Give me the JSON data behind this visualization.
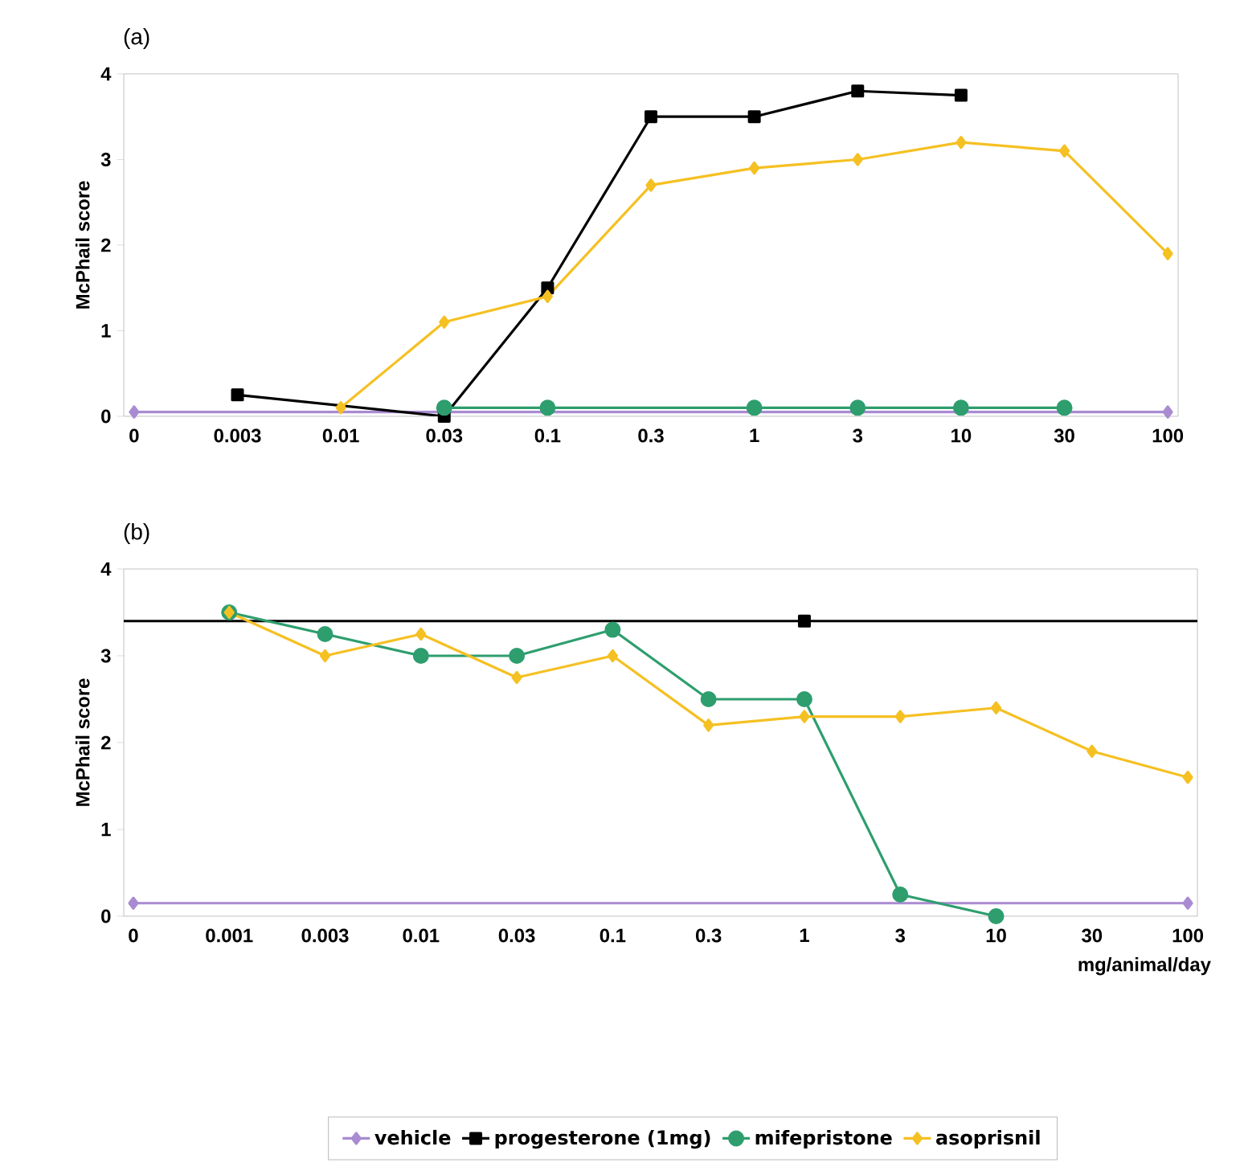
{
  "chart_data": [
    {
      "type": "line",
      "title": "(a)",
      "ylabel": "McPhail score",
      "categories": [
        "0",
        "0.003",
        "0.01",
        "0.03",
        "0.1",
        "0.3",
        "1",
        "3",
        "10",
        "30",
        "100"
      ],
      "ylim": [
        0,
        4
      ],
      "yticks": [
        0,
        1,
        2,
        3,
        4
      ],
      "grid": false,
      "series": [
        {
          "color": "#a98bd2",
          "marker": "diamond",
          "values": [
            0.05,
            null,
            null,
            null,
            null,
            null,
            null,
            null,
            null,
            null,
            0.05
          ]
        },
        {
          "color": "#000000",
          "marker": "square",
          "values": [
            null,
            0.25,
            null,
            0,
            1.5,
            3.5,
            3.5,
            3.8,
            3.75,
            null,
            null
          ]
        },
        {
          "color": "#2e9e6e",
          "marker": "circle",
          "values": [
            null,
            null,
            null,
            0.1,
            0.1,
            null,
            0.1,
            0.1,
            0.1,
            0.1,
            null
          ]
        },
        {
          "color": "#f5c022",
          "marker": "diamond",
          "values": [
            null,
            null,
            0.1,
            1.1,
            1.4,
            2.7,
            2.9,
            3.0,
            3.2,
            3.1,
            1.9
          ]
        }
      ]
    },
    {
      "type": "line",
      "title": "(b)",
      "ylabel": "McPhail score",
      "xlabel": "mg/animal/day",
      "categories": [
        "0",
        "0.001",
        "0.003",
        "0.01",
        "0.03",
        "0.1",
        "0.3",
        "1",
        "3",
        "10",
        "30",
        "100"
      ],
      "ylim": [
        0,
        4
      ],
      "yticks": [
        0,
        1,
        2,
        3,
        4
      ],
      "grid": false,
      "legend": "bottom",
      "ref_lines": [
        {
          "axis": "y",
          "value": 3.4,
          "color": "#000000"
        }
      ],
      "series": [
        {
          "name": "vehicle",
          "color": "#a98bd2",
          "marker": "diamond",
          "values": [
            0.15,
            null,
            null,
            null,
            null,
            null,
            null,
            null,
            null,
            null,
            null,
            0.15
          ]
        },
        {
          "name": "progesterone (1mg)",
          "color": "#000000",
          "marker": "square",
          "values": [
            null,
            null,
            null,
            null,
            null,
            null,
            null,
            3.4,
            null,
            null,
            null,
            null
          ]
        },
        {
          "name": "mifepristone",
          "color": "#2e9e6e",
          "marker": "circle",
          "values": [
            null,
            3.5,
            3.25,
            3.0,
            3.0,
            3.3,
            2.5,
            2.5,
            0.25,
            0.0,
            null,
            null
          ]
        },
        {
          "name": "asoprisnil",
          "color": "#f5c022",
          "marker": "diamond",
          "values": [
            null,
            3.5,
            3.0,
            3.25,
            2.75,
            3.0,
            2.2,
            2.3,
            2.3,
            2.4,
            1.9,
            1.6
          ]
        }
      ]
    }
  ]
}
